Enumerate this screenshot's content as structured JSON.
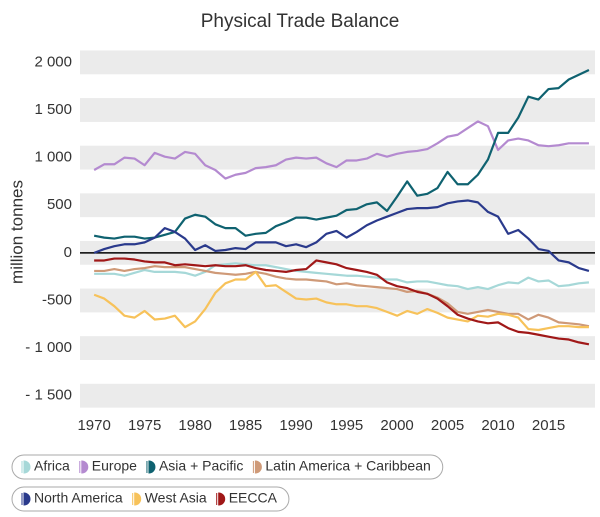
{
  "chart_data": {
    "type": "line",
    "title": "Physical Trade Balance",
    "y_label": "million tonnes",
    "x": [
      1970,
      1971,
      1972,
      1973,
      1974,
      1975,
      1976,
      1977,
      1978,
      1979,
      1980,
      1981,
      1982,
      1983,
      1984,
      1985,
      1986,
      1987,
      1988,
      1989,
      1990,
      1991,
      1992,
      1993,
      1994,
      1995,
      1996,
      1997,
      1998,
      1999,
      2000,
      2001,
      2002,
      2003,
      2004,
      2005,
      2006,
      2007,
      2008,
      2009,
      2010,
      2011,
      2012,
      2013,
      2014,
      2015,
      2016,
      2017,
      2018,
      2019
    ],
    "xlim": [
      1968.6,
      2019.6
    ],
    "xticks": [
      1970,
      1975,
      1980,
      1985,
      1990,
      1995,
      2000,
      2005,
      2010,
      2015
    ],
    "ylim": [
      -1650,
      2130
    ],
    "yticks": [
      {
        "value": 2000,
        "label": "2 000"
      },
      {
        "value": 1500,
        "label": "1 500"
      },
      {
        "value": 1000,
        "label": "1 000"
      },
      500,
      0,
      -500,
      {
        "value": -1000,
        "label": "- 1 000"
      },
      {
        "value": -1500,
        "label": "- 1 500"
      }
    ],
    "grid": true,
    "series": [
      {
        "name": "Africa",
        "color": "#a6d8d8",
        "values": [
          -220,
          -220,
          -220,
          -240,
          -210,
          -180,
          -200,
          -200,
          -200,
          -210,
          -240,
          -200,
          -130,
          -120,
          -110,
          -120,
          -130,
          -130,
          -150,
          -170,
          -190,
          -200,
          -210,
          -220,
          -230,
          -240,
          -240,
          -250,
          -260,
          -280,
          -280,
          -310,
          -300,
          -300,
          -320,
          -340,
          -350,
          -380,
          -360,
          -380,
          -340,
          -310,
          -320,
          -260,
          -300,
          -290,
          -350,
          -340,
          -320,
          -310
        ]
      },
      {
        "name": "Europe",
        "color": "#b48ad0",
        "values": [
          870,
          930,
          930,
          1000,
          990,
          920,
          1050,
          1010,
          990,
          1060,
          1040,
          920,
          870,
          780,
          820,
          840,
          890,
          900,
          920,
          980,
          1000,
          990,
          1000,
          940,
          900,
          970,
          970,
          990,
          1040,
          1010,
          1040,
          1060,
          1070,
          1090,
          1150,
          1220,
          1240,
          1310,
          1380,
          1330,
          1080,
          1180,
          1200,
          1180,
          1130,
          1120,
          1130,
          1150,
          1150,
          1150
        ]
      },
      {
        "name": "Asia + Pacific",
        "color": "#0f6270",
        "values": [
          180,
          160,
          150,
          170,
          170,
          150,
          160,
          190,
          220,
          360,
          400,
          380,
          300,
          260,
          260,
          180,
          200,
          210,
          280,
          320,
          370,
          370,
          350,
          370,
          390,
          450,
          460,
          510,
          530,
          440,
          590,
          750,
          600,
          620,
          680,
          850,
          720,
          720,
          820,
          980,
          1260,
          1260,
          1420,
          1640,
          1610,
          1720,
          1730,
          1820,
          1870,
          1920
        ]
      },
      {
        "name": "Latin America + Caribbean",
        "color": "#cf9a78",
        "values": [
          -190,
          -190,
          -170,
          -190,
          -170,
          -160,
          -140,
          -150,
          -150,
          -150,
          -170,
          -190,
          -210,
          -220,
          -230,
          -220,
          -200,
          -220,
          -250,
          -270,
          -280,
          -280,
          -290,
          -300,
          -330,
          -320,
          -340,
          -350,
          -360,
          -370,
          -380,
          -410,
          -400,
          -430,
          -470,
          -530,
          -620,
          -640,
          -620,
          -600,
          -620,
          -640,
          -640,
          -700,
          -650,
          -680,
          -730,
          -740,
          -750,
          -770
        ]
      },
      {
        "name": "North America",
        "color": "#2a3a8c",
        "values": [
          0,
          40,
          70,
          90,
          90,
          110,
          160,
          260,
          220,
          150,
          30,
          80,
          20,
          30,
          50,
          40,
          110,
          110,
          110,
          70,
          90,
          60,
          110,
          200,
          230,
          160,
          220,
          290,
          340,
          380,
          420,
          460,
          470,
          470,
          480,
          520,
          540,
          550,
          530,
          430,
          380,
          200,
          240,
          150,
          40,
          20,
          -80,
          -100,
          -160,
          -190
        ]
      },
      {
        "name": "West Asia",
        "color": "#f7c25a",
        "values": [
          -440,
          -480,
          -560,
          -660,
          -680,
          -610,
          -700,
          -690,
          -660,
          -780,
          -720,
          -590,
          -420,
          -320,
          -280,
          -280,
          -200,
          -350,
          -340,
          -410,
          -480,
          -490,
          -480,
          -520,
          -540,
          -540,
          -560,
          -560,
          -580,
          -620,
          -660,
          -610,
          -640,
          -590,
          -630,
          -680,
          -700,
          -720,
          -660,
          -670,
          -640,
          -650,
          -680,
          -800,
          -810,
          -790,
          -770,
          -770,
          -780,
          -780
        ]
      },
      {
        "name": "EECCA",
        "color": "#a01818",
        "values": [
          -80,
          -80,
          -60,
          -60,
          -70,
          -90,
          -100,
          -100,
          -130,
          -120,
          -130,
          -140,
          -130,
          -140,
          -140,
          -130,
          -160,
          -180,
          -190,
          -200,
          -180,
          -170,
          -80,
          -100,
          -120,
          -160,
          -180,
          -200,
          -230,
          -310,
          -350,
          -370,
          -410,
          -430,
          -480,
          -560,
          -650,
          -690,
          -720,
          -740,
          -730,
          -790,
          -830,
          -840,
          -860,
          -880,
          -900,
          -910,
          -940,
          -960
        ]
      }
    ]
  }
}
